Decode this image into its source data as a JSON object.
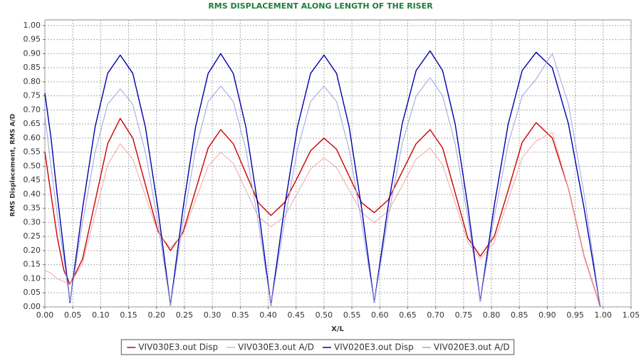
{
  "chart_data": {
    "type": "line",
    "title": "RMS DISPLACEMENT ALONG LENGTH OF THE RISER",
    "x_label": "X/L",
    "y_label": "RMS Displacement,  RMS A/D",
    "x": [
      0,
      0.011,
      0.022,
      0.034,
      0.045,
      0.0675,
      0.09,
      0.1125,
      0.135,
      0.1575,
      0.18,
      0.2025,
      0.225,
      0.2475,
      0.27,
      0.2925,
      0.315,
      0.3375,
      0.36,
      0.3825,
      0.405,
      0.429,
      0.4525,
      0.476,
      0.5,
      0.5225,
      0.545,
      0.5675,
      0.59,
      0.615,
      0.64,
      0.665,
      0.69,
      0.7125,
      0.735,
      0.7575,
      0.78,
      0.805,
      0.83,
      0.855,
      0.88,
      0.909,
      0.938,
      0.966,
      0.995
    ],
    "series": [
      {
        "name": "VIV030E3.out Disp",
        "color": "#cc0000",
        "width": 1.4,
        "values": [
          0.55,
          0.4,
          0.25,
          0.13,
          0.08,
          0.17,
          0.375,
          0.58,
          0.67,
          0.6,
          0.435,
          0.27,
          0.2,
          0.265,
          0.415,
          0.565,
          0.63,
          0.58,
          0.475,
          0.37,
          0.325,
          0.37,
          0.46,
          0.555,
          0.6,
          0.56,
          0.465,
          0.37,
          0.335,
          0.38,
          0.48,
          0.58,
          0.63,
          0.565,
          0.405,
          0.245,
          0.18,
          0.25,
          0.415,
          0.585,
          0.655,
          0.6,
          0.42,
          0.18,
          0.0
        ]
      },
      {
        "name": "VIV030E3.out A/D",
        "color": "#f0a8a8",
        "width": 1,
        "values": [
          0.13,
          0.12,
          0.1,
          0.09,
          0.08,
          0.155,
          0.33,
          0.505,
          0.58,
          0.525,
          0.395,
          0.265,
          0.21,
          0.26,
          0.38,
          0.5,
          0.55,
          0.51,
          0.415,
          0.32,
          0.285,
          0.32,
          0.405,
          0.49,
          0.53,
          0.495,
          0.415,
          0.335,
          0.3,
          0.34,
          0.43,
          0.525,
          0.565,
          0.505,
          0.37,
          0.23,
          0.17,
          0.23,
          0.38,
          0.53,
          0.59,
          0.62,
          0.42,
          0.18,
          0.0
        ]
      },
      {
        "name": "VIV020E3.out Disp",
        "color": "#0000aa",
        "width": 1.4,
        "values": [
          0.76,
          0.6,
          0.4,
          0.2,
          0.015,
          0.35,
          0.64,
          0.83,
          0.895,
          0.83,
          0.64,
          0.35,
          0.005,
          0.35,
          0.64,
          0.83,
          0.9,
          0.83,
          0.64,
          0.35,
          0.005,
          0.35,
          0.64,
          0.83,
          0.895,
          0.83,
          0.64,
          0.35,
          0.015,
          0.36,
          0.65,
          0.84,
          0.91,
          0.84,
          0.65,
          0.36,
          0.02,
          0.36,
          0.65,
          0.84,
          0.905,
          0.85,
          0.65,
          0.35,
          0.0
        ]
      },
      {
        "name": "VIV020E3.out A/D",
        "color": "#a0a0e0",
        "width": 1,
        "values": [
          0.68,
          0.5,
          0.33,
          0.17,
          0.02,
          0.3,
          0.55,
          0.72,
          0.775,
          0.72,
          0.55,
          0.3,
          0.005,
          0.3,
          0.56,
          0.73,
          0.785,
          0.73,
          0.56,
          0.3,
          0.005,
          0.3,
          0.56,
          0.73,
          0.785,
          0.73,
          0.56,
          0.3,
          0.015,
          0.32,
          0.58,
          0.75,
          0.815,
          0.75,
          0.58,
          0.32,
          0.02,
          0.32,
          0.58,
          0.75,
          0.81,
          0.9,
          0.72,
          0.4,
          0.0
        ]
      }
    ],
    "xlim": [
      0,
      1.05
    ],
    "ylim": [
      0,
      1.02
    ],
    "grid": true,
    "legend": "bottom",
    "xticks": [
      {
        "value": 0,
        "label": "0.00"
      },
      {
        "value": 0.05,
        "label": "0.05"
      },
      {
        "value": 0.1,
        "label": "0.10"
      },
      {
        "value": 0.15,
        "label": "0.15"
      },
      {
        "value": 0.2,
        "label": "0.20"
      },
      {
        "value": 0.25,
        "label": "0.25"
      },
      {
        "value": 0.3,
        "label": "0.30"
      },
      {
        "value": 0.35,
        "label": "0.35"
      },
      {
        "value": 0.4,
        "label": "0.40"
      },
      {
        "value": 0.45,
        "label": "0.45"
      },
      {
        "value": 0.5,
        "label": "0.50"
      },
      {
        "value": 0.55,
        "label": "0.55"
      },
      {
        "value": 0.6,
        "label": "0.60"
      },
      {
        "value": 0.65,
        "label": "0.65"
      },
      {
        "value": 0.7,
        "label": "0.70"
      },
      {
        "value": 0.75,
        "label": "0.75"
      },
      {
        "value": 0.8,
        "label": "0.80"
      },
      {
        "value": 0.85,
        "label": "0.85"
      },
      {
        "value": 0.9,
        "label": "0.90"
      },
      {
        "value": 0.95,
        "label": "0.95"
      },
      {
        "value": 1,
        "label": "1.00"
      },
      {
        "value": 1.05,
        "label": "1.05"
      }
    ],
    "yticks": [
      {
        "value": 0,
        "label": "0.00"
      },
      {
        "value": 0.05,
        "label": "0.05"
      },
      {
        "value": 0.1,
        "label": "0.10"
      },
      {
        "value": 0.15,
        "label": "0.15"
      },
      {
        "value": 0.2,
        "label": "0.20"
      },
      {
        "value": 0.25,
        "label": "0.25"
      },
      {
        "value": 0.3,
        "label": "0.30"
      },
      {
        "value": 0.35,
        "label": "0.35"
      },
      {
        "value": 0.4,
        "label": "0.40"
      },
      {
        "value": 0.45,
        "label": "0.45"
      },
      {
        "value": 0.5,
        "label": "0.50"
      },
      {
        "value": 0.55,
        "label": "0.55"
      },
      {
        "value": 0.6,
        "label": "0.60"
      },
      {
        "value": 0.65,
        "label": "0.65"
      },
      {
        "value": 0.7,
        "label": "0.70"
      },
      {
        "value": 0.75,
        "label": "0.75"
      },
      {
        "value": 0.8,
        "label": "0.80"
      },
      {
        "value": 0.85,
        "label": "0.85"
      },
      {
        "value": 0.9,
        "label": "0.90"
      },
      {
        "value": 0.95,
        "label": "0.95"
      },
      {
        "value": 1,
        "label": "1.00"
      }
    ]
  }
}
